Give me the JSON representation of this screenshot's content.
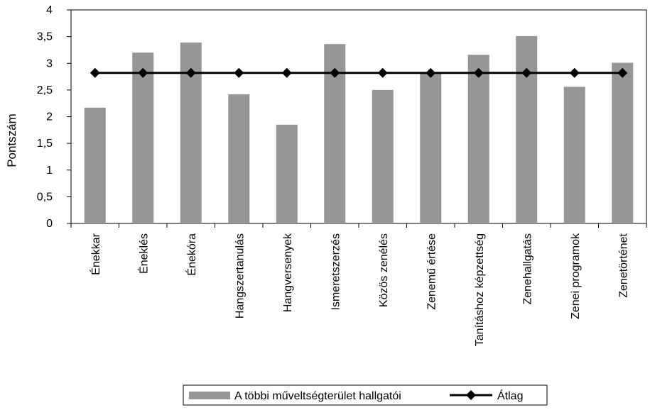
{
  "chart_data": {
    "type": "bar",
    "title": "",
    "xlabel": "",
    "ylabel": "Pontszám",
    "ylim": [
      0,
      4
    ],
    "yticks": [
      "0",
      "0,5",
      "1",
      "1,5",
      "2",
      "2,5",
      "3",
      "3,5",
      "4"
    ],
    "categories": [
      "Énekkar",
      "Éneklés",
      "Énekóra",
      "Hangszertanulás",
      "Hangversenyek",
      "Ismeretszerzés",
      "Közös zenélés",
      "Zenemű értése",
      "Tanításhoz képzettség",
      "Zenehallgatás",
      "Zenei programok",
      "Zenetörténet"
    ],
    "series": [
      {
        "name": "A többi műveltségterület hallgatói",
        "type": "bar",
        "color": "#969696",
        "values": [
          2.17,
          3.2,
          3.39,
          2.42,
          1.85,
          3.36,
          2.5,
          2.82,
          3.16,
          3.51,
          2.56,
          3.01
        ]
      },
      {
        "name": "Átlag",
        "type": "line",
        "color": "#000000",
        "marker": "diamond",
        "values": [
          2.82,
          2.82,
          2.82,
          2.82,
          2.82,
          2.82,
          2.82,
          2.82,
          2.82,
          2.82,
          2.82,
          2.82
        ]
      }
    ],
    "grid": false,
    "legend": "bottom"
  }
}
